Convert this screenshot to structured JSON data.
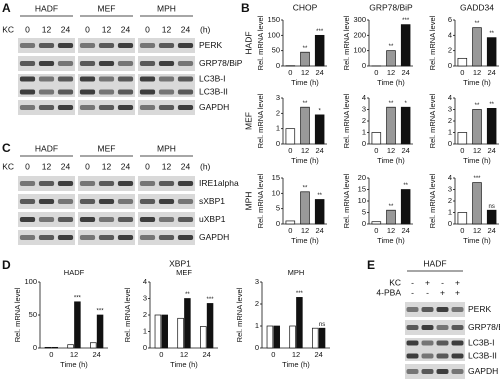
{
  "blots": [
    {
      "letter": "A",
      "groups": [
        "HADF",
        "MEF",
        "MPH"
      ],
      "treatment": "KC",
      "lanes": [
        "0",
        "12",
        "24"
      ],
      "unit": "(h)",
      "rows": [
        {
          "labels": [
            "PERK"
          ]
        },
        {
          "labels": [
            "GRP78/BiP"
          ]
        },
        {
          "labels": [
            "LC3B-I",
            "LC3B-II"
          ]
        },
        {
          "labels": [
            "GAPDH"
          ]
        }
      ]
    },
    {
      "letter": "C",
      "groups": [
        "HADF",
        "MEF",
        "MPH"
      ],
      "treatment": "KC",
      "lanes": [
        "0",
        "12",
        "24"
      ],
      "unit": "(h)",
      "rows": [
        {
          "labels": [
            "IRE1alpha"
          ]
        },
        {
          "labels": [
            "sXBP1"
          ]
        },
        {
          "labels": [
            "uXBP1"
          ]
        },
        {
          "labels": [
            "GAPDH"
          ]
        }
      ]
    },
    {
      "letter": "E",
      "groups": [
        "HADF"
      ],
      "treatments": [
        {
          "name": "KC",
          "lanes": [
            "-",
            "+",
            "-",
            "+"
          ]
        },
        {
          "name": "4-PBA",
          "lanes": [
            "-",
            "-",
            "+",
            "+"
          ]
        }
      ],
      "rows": [
        {
          "labels": [
            "PERK"
          ]
        },
        {
          "labels": [
            "GRP78/BiP"
          ]
        },
        {
          "labels": [
            "LC3B-I",
            "LC3B-II"
          ]
        },
        {
          "labels": [
            "GAPDH"
          ]
        }
      ]
    }
  ],
  "panel_b": {
    "letter": "B",
    "column_titles": [
      "CHOP",
      "GRP78/BiP",
      "GADD34"
    ],
    "row_titles": [
      "HADF",
      "MEF",
      "MPH"
    ]
  },
  "panel_d": {
    "letter": "D",
    "title": "XBP1"
  },
  "chart_data": [
    {
      "type": "bar",
      "categories": [
        "0",
        "12",
        "24"
      ],
      "values": [
        1,
        45,
        100
      ],
      "colors": [
        "#ffffff",
        "#999999",
        "#111111"
      ],
      "significance": [
        null,
        "**",
        "***"
      ],
      "ylim": [
        0,
        150
      ],
      "yticks": [
        0,
        50,
        100,
        150
      ],
      "y_label": "Rel. mRNA level",
      "x_label": "Time (h)"
    },
    {
      "type": "bar",
      "categories": [
        "0",
        "12",
        "24"
      ],
      "values": [
        1,
        100,
        270
      ],
      "colors": [
        "#ffffff",
        "#999999",
        "#111111"
      ],
      "significance": [
        null,
        "**",
        "***"
      ],
      "ylim": [
        0,
        300
      ],
      "yticks": [
        0,
        100,
        200,
        300
      ],
      "y_label": "Rel. mRNA level",
      "x_label": "Time (h)"
    },
    {
      "type": "bar",
      "categories": [
        "0",
        "12",
        "24"
      ],
      "values": [
        1,
        5,
        3.7
      ],
      "colors": [
        "#ffffff",
        "#999999",
        "#111111"
      ],
      "significance": [
        null,
        "**",
        "**"
      ],
      "ylim": [
        0,
        6
      ],
      "yticks": [
        0,
        2,
        4,
        6
      ],
      "y_label": "Rel. mRNA level",
      "x_label": "Time (h)"
    },
    {
      "type": "bar",
      "categories": [
        "0",
        "12",
        "24"
      ],
      "values": [
        1,
        2.4,
        1.9
      ],
      "colors": [
        "#ffffff",
        "#999999",
        "#111111"
      ],
      "significance": [
        null,
        "**",
        "*"
      ],
      "ylim": [
        0,
        3
      ],
      "yticks": [
        0,
        1,
        2,
        3
      ],
      "y_label": "Rel. mRNA level",
      "x_label": "Time (h)"
    },
    {
      "type": "bar",
      "categories": [
        "0",
        "12",
        "24"
      ],
      "values": [
        1,
        3.2,
        3.2
      ],
      "colors": [
        "#ffffff",
        "#999999",
        "#111111"
      ],
      "significance": [
        null,
        "**",
        "*"
      ],
      "ylim": [
        0,
        4
      ],
      "yticks": [
        0,
        1,
        2,
        3,
        4
      ],
      "y_label": "Rel. mRNA level",
      "x_label": "Time (h)"
    },
    {
      "type": "bar",
      "categories": [
        "0",
        "12",
        "24"
      ],
      "values": [
        1,
        3,
        3.1
      ],
      "colors": [
        "#ffffff",
        "#999999",
        "#111111"
      ],
      "significance": [
        null,
        "**",
        "**"
      ],
      "ylim": [
        0,
        4
      ],
      "yticks": [
        0,
        1,
        2,
        3,
        4
      ],
      "y_label": "Rel. mRNA level",
      "x_label": "Time (h)"
    },
    {
      "type": "bar",
      "categories": [
        "0",
        "12",
        "24"
      ],
      "values": [
        1,
        10.5,
        8
      ],
      "colors": [
        "#ffffff",
        "#999999",
        "#111111"
      ],
      "significance": [
        null,
        "**",
        "**"
      ],
      "ylim": [
        0,
        15
      ],
      "yticks": [
        0,
        5,
        10,
        15
      ],
      "y_label": "Rel. mRNA level",
      "x_label": "Time (h)"
    },
    {
      "type": "bar",
      "categories": [
        "0",
        "12",
        "24"
      ],
      "values": [
        1,
        6,
        15
      ],
      "colors": [
        "#ffffff",
        "#999999",
        "#111111"
      ],
      "significance": [
        null,
        "**",
        "**"
      ],
      "ylim": [
        0,
        20
      ],
      "yticks": [
        0,
        5,
        10,
        15,
        20
      ],
      "y_label": "Rel. mRNA level",
      "x_label": "Time (h)"
    },
    {
      "type": "bar",
      "categories": [
        "0",
        "12",
        "24"
      ],
      "values": [
        1,
        3.6,
        1.2
      ],
      "colors": [
        "#ffffff",
        "#999999",
        "#111111"
      ],
      "significance": [
        null,
        "***",
        "ns"
      ],
      "ylim": [
        0,
        4
      ],
      "yticks": [
        0,
        1,
        2,
        3,
        4
      ],
      "y_label": "Rel. mRNA level",
      "x_label": "Time (h)"
    },
    {
      "type": "grouped_bar",
      "title": "HADF",
      "categories": [
        "0",
        "12",
        "24"
      ],
      "series": [
        {
          "color": "#ffffff",
          "values": [
            1,
            5,
            8
          ]
        },
        {
          "color": "#111111",
          "values": [
            1,
            70,
            50
          ],
          "significance": [
            null,
            "***",
            "***"
          ]
        }
      ],
      "ylim": [
        0,
        100
      ],
      "yticks": [
        0,
        50,
        100
      ],
      "y_label": "Rel. mRNA level",
      "x_label": "Time (h)"
    },
    {
      "type": "grouped_bar",
      "title": "MEF",
      "categories": [
        "0",
        "12",
        "24"
      ],
      "series": [
        {
          "color": "#ffffff",
          "values": [
            2,
            1.8,
            1.3
          ]
        },
        {
          "color": "#111111",
          "values": [
            2,
            3,
            2.7
          ],
          "significance": [
            null,
            "**",
            "***"
          ]
        }
      ],
      "ylim": [
        0,
        4
      ],
      "yticks": [
        0,
        1,
        2,
        3,
        4
      ],
      "y_label": "Rel. mRNA level",
      "x_label": "Time (h)"
    },
    {
      "type": "grouped_bar",
      "title": "MPH",
      "categories": [
        "0",
        "12",
        "24"
      ],
      "series": [
        {
          "color": "#ffffff",
          "values": [
            1,
            1,
            0.9
          ]
        },
        {
          "color": "#111111",
          "values": [
            1,
            2.3,
            0.9
          ],
          "significance": [
            null,
            "***",
            "ns"
          ]
        }
      ],
      "ylim": [
        0,
        3
      ],
      "yticks": [
        0,
        1,
        2,
        3
      ],
      "y_label": "Rel. mRNA level",
      "x_label": "Time (h)"
    }
  ]
}
